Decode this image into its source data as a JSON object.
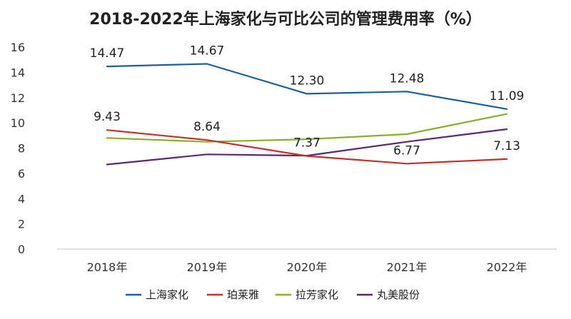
{
  "chart_data": {
    "type": "line",
    "title": "2018-2022年上海家化与可比公司的管理费用率（%）",
    "xlabel": "",
    "ylabel": "",
    "categories": [
      "2018年",
      "2019年",
      "2020年",
      "2021年",
      "2022年"
    ],
    "ylim": [
      0,
      16
    ],
    "yticks": [
      "0",
      "2",
      "4",
      "6",
      "8",
      "10",
      "12",
      "14",
      "16"
    ],
    "grid": false,
    "legend_position": "bottom",
    "series": [
      {
        "name": "上海家化",
        "color": "#1f5f99",
        "values": [
          14.47,
          14.67,
          12.3,
          12.48,
          11.09
        ],
        "labels": [
          "14.47",
          "14.67",
          "12.30",
          "12.48",
          "11.09"
        ]
      },
      {
        "name": "珀莱雅",
        "color": "#c0312a",
        "values": [
          9.43,
          8.64,
          7.37,
          6.77,
          7.13
        ],
        "labels": [
          "9.43",
          "8.64",
          "7.37",
          "6.77",
          "7.13"
        ]
      },
      {
        "name": "拉芳家化",
        "color": "#8aad2e",
        "values": [
          8.8,
          8.5,
          8.7,
          9.1,
          10.7
        ],
        "labels": []
      },
      {
        "name": "丸美股份",
        "color": "#5b2a6e",
        "values": [
          6.7,
          7.5,
          7.4,
          8.5,
          9.5
        ],
        "labels": []
      }
    ]
  }
}
